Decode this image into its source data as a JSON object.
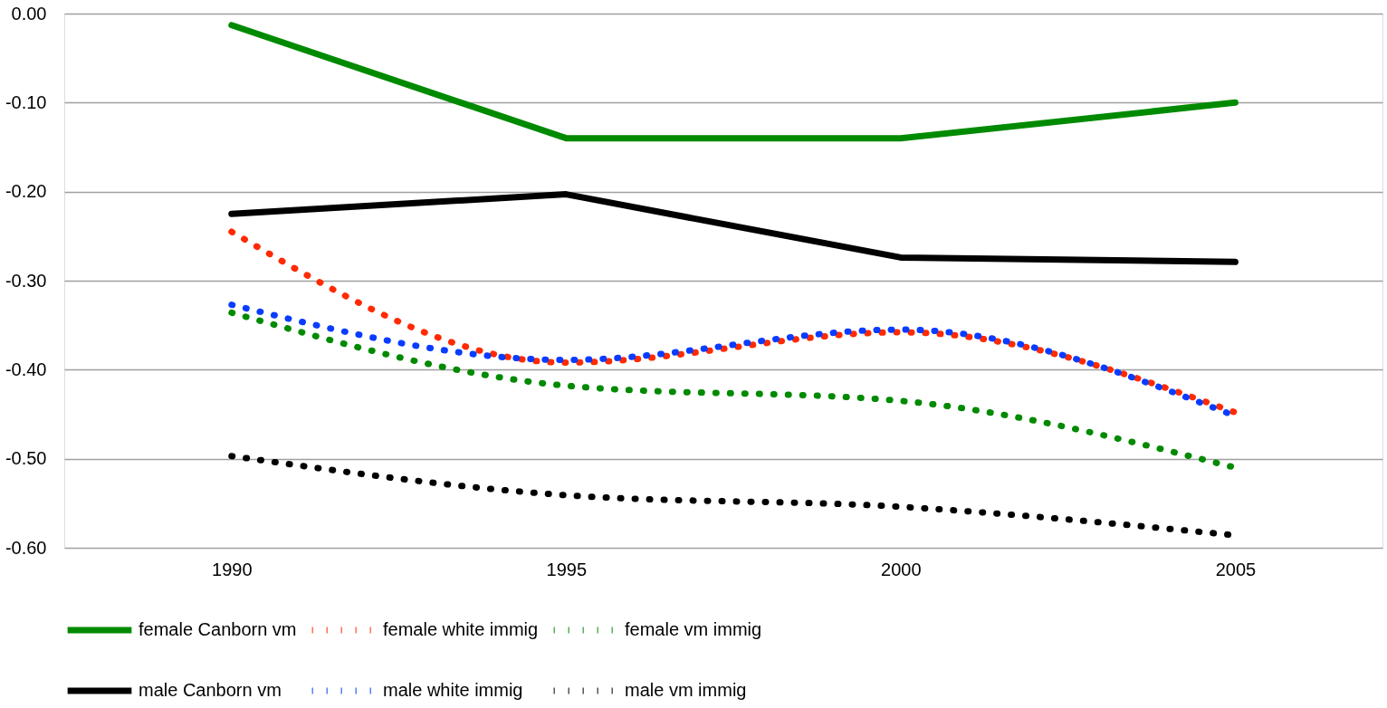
{
  "chart_data": {
    "type": "line",
    "x": [
      1990,
      1995,
      2000,
      2005
    ],
    "xlim": [
      1987.5,
      2007.2
    ],
    "xticks": [
      1990,
      1995,
      2000,
      2005
    ],
    "ylim": [
      -0.6,
      0.0
    ],
    "yticks": [
      {
        "value": -0.6,
        "label": "-0.60"
      },
      {
        "value": -0.5,
        "label": "-0.50"
      },
      {
        "value": -0.4,
        "label": "-0.40"
      },
      {
        "value": -0.3,
        "label": "-0.30"
      },
      {
        "value": -0.2,
        "label": "-0.20"
      },
      {
        "value": -0.1,
        "label": "-0.10"
      },
      {
        "value": 0.0,
        "label": "0.00"
      }
    ],
    "grid": "y",
    "legend": "bottom",
    "marker": "none",
    "series": [
      {
        "name": "female Canborn vm",
        "color": "#008a00",
        "line_style": "solid",
        "values": [
          -0.013,
          -0.14,
          -0.14,
          -0.1
        ]
      },
      {
        "name": "female white immig",
        "color": "#ff2a00",
        "line_style": "dotted",
        "values": [
          -0.245,
          -0.392,
          -0.358,
          -0.448
        ]
      },
      {
        "name": "female vm immig",
        "color": "#008a00",
        "line_style": "dotted",
        "values": [
          -0.336,
          -0.418,
          -0.435,
          -0.51
        ]
      },
      {
        "name": "male Canborn vm",
        "color": "#000000",
        "line_style": "solid",
        "values": [
          -0.225,
          -0.203,
          -0.274,
          -0.279
        ]
      },
      {
        "name": "male white immig",
        "color": "#0a3cff",
        "line_style": "dotted",
        "values": [
          -0.327,
          -0.389,
          -0.355,
          -0.452
        ]
      },
      {
        "name": "male vm immig",
        "color": "#000000",
        "line_style": "dotted",
        "values": [
          -0.497,
          -0.541,
          -0.554,
          -0.586
        ]
      }
    ]
  }
}
